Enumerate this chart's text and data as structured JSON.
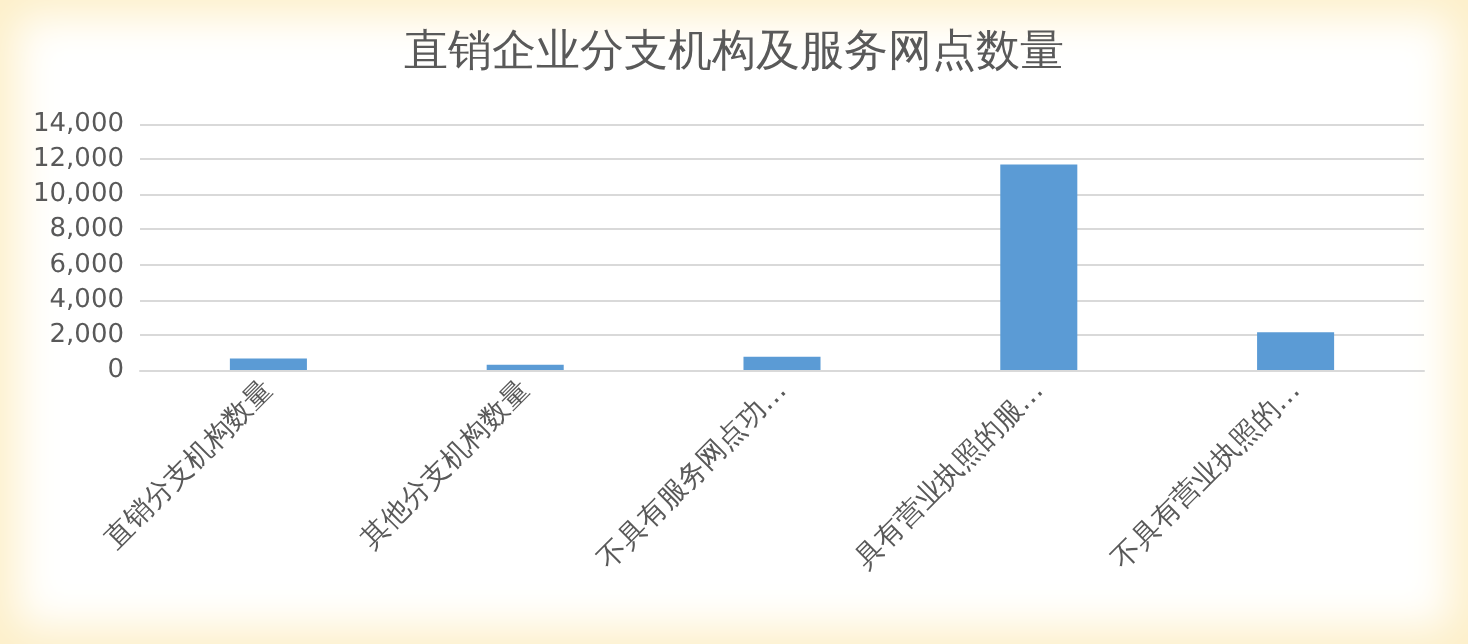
{
  "chart_data": {
    "type": "bar",
    "title": "直销企业分支机构及服务网点数量",
    "categories": [
      "直销分支机构数量",
      "其他分支机构数量",
      "不具有服务网点功…",
      "具有营业执照的服…",
      "不具有营业执照的…"
    ],
    "values": [
      650,
      300,
      750,
      11700,
      2150
    ],
    "color": "#5b9bd5",
    "ylim": [
      0,
      14000
    ],
    "yticks": [
      0,
      {
        "value": 2000,
        "label": "2,000"
      },
      {
        "value": 4000,
        "label": "4,000"
      },
      {
        "value": 6000,
        "label": "6,000"
      },
      {
        "value": 8000,
        "label": "8,000"
      },
      {
        "value": 10000,
        "label": "10,000"
      },
      {
        "value": 12000,
        "label": "12,000"
      },
      {
        "value": 14000,
        "label": "14,000"
      }
    ],
    "grid": "y"
  }
}
